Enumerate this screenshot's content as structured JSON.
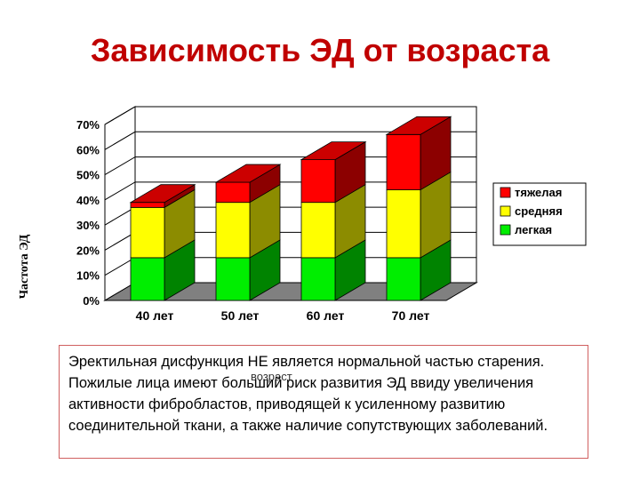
{
  "slide": {
    "title": "Зависимость ЭД от возраста",
    "note": "Эректильная дисфункция НЕ является нормальной частью старения. Пожилые лица имеют больший риск развития ЭД ввиду увеличения активности фибробластов, приводящей к усиленному развитию соединительной ткани, а также наличие сопутствующих заболеваний."
  },
  "chart_data": {
    "type": "bar",
    "stacked": true,
    "three_d": true,
    "categories": [
      "40 лет",
      "50 лет",
      "60 лет",
      "70 лет"
    ],
    "series": [
      {
        "name": "легкая",
        "color": "#00ee00",
        "values": [
          17,
          17,
          17,
          17
        ]
      },
      {
        "name": "средняя",
        "color": "#ffff00",
        "values": [
          20,
          22,
          22,
          27
        ]
      },
      {
        "name": "тяжелая",
        "color": "#ff0000",
        "values": [
          2,
          8,
          17,
          22
        ]
      }
    ],
    "ylim": [
      0,
      70
    ],
    "yticks": [
      "0%",
      "10%",
      "20%",
      "30%",
      "40%",
      "50%",
      "60%",
      "70%"
    ],
    "ylabel": "Частота ЭД",
    "xlabel": "возраст",
    "grid": true,
    "legend_position": "right",
    "legend_order": [
      "тяжелая",
      "средняя",
      "легкая"
    ]
  }
}
